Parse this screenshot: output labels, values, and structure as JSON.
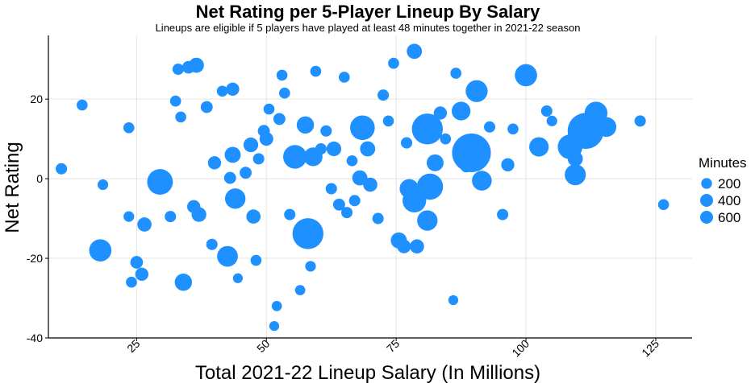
{
  "chart_data": {
    "type": "scatter",
    "title": "Net Rating per 5-Player Lineup By Salary",
    "subtitle": "Lineups are eligible if 5 players have played at least 48 minutes together in 2021-22 season",
    "xlabel": "Total 2021-22 Lineup Salary (In Millions)",
    "ylabel": "Net Rating",
    "xlim": [
      8,
      132
    ],
    "ylim": [
      -40,
      36
    ],
    "x_ticks": [
      25,
      50,
      75,
      100,
      125
    ],
    "x_tick_labels": [
      "25",
      "50",
      "75",
      "100",
      "125"
    ],
    "y_ticks": [
      -40,
      -20,
      0,
      20
    ],
    "y_tick_labels": [
      "-40",
      "-20",
      "0",
      "20"
    ],
    "grid": true,
    "point_color": "#1e90ff",
    "legend": {
      "title": "Minutes",
      "position": "right",
      "entries": [
        {
          "label": "200",
          "value": 200
        },
        {
          "label": "400",
          "value": 400
        },
        {
          "label": "600",
          "value": 600
        }
      ]
    },
    "points": [
      {
        "x": 10.5,
        "y": 2.5,
        "minutes": 60
      },
      {
        "x": 14.5,
        "y": 18.5,
        "minutes": 55
      },
      {
        "x": 18.0,
        "y": -18.0,
        "minutes": 330
      },
      {
        "x": 18.5,
        "y": -1.5,
        "minutes": 50
      },
      {
        "x": 23.5,
        "y": 12.8,
        "minutes": 55
      },
      {
        "x": 23.5,
        "y": -9.5,
        "minutes": 50
      },
      {
        "x": 24.0,
        "y": -26.0,
        "minutes": 55
      },
      {
        "x": 25.0,
        "y": -21.0,
        "minutes": 80
      },
      {
        "x": 26.0,
        "y": -24.0,
        "minutes": 90
      },
      {
        "x": 26.5,
        "y": -11.5,
        "minutes": 110
      },
      {
        "x": 29.5,
        "y": -0.8,
        "minutes": 460
      },
      {
        "x": 31.5,
        "y": -9.5,
        "minutes": 60
      },
      {
        "x": 32.5,
        "y": 19.5,
        "minutes": 55
      },
      {
        "x": 33.0,
        "y": 27.5,
        "minutes": 60
      },
      {
        "x": 33.5,
        "y": 15.5,
        "minutes": 55
      },
      {
        "x": 34.0,
        "y": -26.0,
        "minutes": 180
      },
      {
        "x": 35.0,
        "y": 28.0,
        "minutes": 80
      },
      {
        "x": 36.5,
        "y": 28.5,
        "minutes": 130
      },
      {
        "x": 36.0,
        "y": -7.0,
        "minutes": 90
      },
      {
        "x": 37.0,
        "y": -9.0,
        "minutes": 120
      },
      {
        "x": 38.5,
        "y": 18.0,
        "minutes": 70
      },
      {
        "x": 39.5,
        "y": -16.5,
        "minutes": 60
      },
      {
        "x": 40.0,
        "y": 4.0,
        "minutes": 90
      },
      {
        "x": 41.5,
        "y": 22.0,
        "minutes": 55
      },
      {
        "x": 42.5,
        "y": -19.5,
        "minutes": 280
      },
      {
        "x": 43.5,
        "y": 6.0,
        "minutes": 150
      },
      {
        "x": 43.0,
        "y": 0.2,
        "minutes": 70
      },
      {
        "x": 43.5,
        "y": 22.5,
        "minutes": 90
      },
      {
        "x": 44.0,
        "y": -5.0,
        "minutes": 270
      },
      {
        "x": 44.5,
        "y": -25.0,
        "minutes": 40
      },
      {
        "x": 46.0,
        "y": 1.5,
        "minutes": 70
      },
      {
        "x": 47.0,
        "y": 8.5,
        "minutes": 120
      },
      {
        "x": 47.5,
        "y": -9.5,
        "minutes": 110
      },
      {
        "x": 48.0,
        "y": -20.5,
        "minutes": 55
      },
      {
        "x": 48.5,
        "y": 5.0,
        "minutes": 60
      },
      {
        "x": 49.5,
        "y": 12.0,
        "minutes": 70
      },
      {
        "x": 50.0,
        "y": 10.0,
        "minutes": 100
      },
      {
        "x": 50.5,
        "y": 17.5,
        "minutes": 55
      },
      {
        "x": 51.5,
        "y": -37.0,
        "minutes": 40
      },
      {
        "x": 52.0,
        "y": -32.0,
        "minutes": 45
      },
      {
        "x": 52.5,
        "y": 15.0,
        "minutes": 70
      },
      {
        "x": 53.0,
        "y": 26.0,
        "minutes": 55
      },
      {
        "x": 53.5,
        "y": 21.5,
        "minutes": 55
      },
      {
        "x": 54.5,
        "y": -9.0,
        "minutes": 60
      },
      {
        "x": 55.5,
        "y": 5.5,
        "minutes": 380
      },
      {
        "x": 56.5,
        "y": -28.0,
        "minutes": 45
      },
      {
        "x": 57.5,
        "y": 13.5,
        "minutes": 180
      },
      {
        "x": 58.0,
        "y": -13.8,
        "minutes": 700
      },
      {
        "x": 58.5,
        "y": -22.0,
        "minutes": 50
      },
      {
        "x": 59.0,
        "y": 5.5,
        "minutes": 220
      },
      {
        "x": 59.5,
        "y": 27.0,
        "minutes": 55
      },
      {
        "x": 60.5,
        "y": 7.5,
        "minutes": 60
      },
      {
        "x": 61.5,
        "y": 12.0,
        "minutes": 60
      },
      {
        "x": 62.5,
        "y": -2.5,
        "minutes": 60
      },
      {
        "x": 63.0,
        "y": 7.5,
        "minutes": 120
      },
      {
        "x": 64.0,
        "y": -6.5,
        "minutes": 70
      },
      {
        "x": 65.0,
        "y": 25.5,
        "minutes": 55
      },
      {
        "x": 65.5,
        "y": -8.5,
        "minutes": 60
      },
      {
        "x": 66.5,
        "y": 4.5,
        "minutes": 55
      },
      {
        "x": 67.0,
        "y": -5.5,
        "minutes": 60
      },
      {
        "x": 68.5,
        "y": 12.8,
        "minutes": 420
      },
      {
        "x": 68.0,
        "y": 0.2,
        "minutes": 130
      },
      {
        "x": 69.5,
        "y": 7.5,
        "minutes": 130
      },
      {
        "x": 70.0,
        "y": -1.5,
        "minutes": 110
      },
      {
        "x": 71.5,
        "y": -10.0,
        "minutes": 60
      },
      {
        "x": 72.5,
        "y": 21.0,
        "minutes": 60
      },
      {
        "x": 73.5,
        "y": 14.5,
        "minutes": 55
      },
      {
        "x": 74.5,
        "y": 29.0,
        "minutes": 55
      },
      {
        "x": 75.5,
        "y": -15.5,
        "minutes": 150
      },
      {
        "x": 76.5,
        "y": -17.0,
        "minutes": 100
      },
      {
        "x": 77.0,
        "y": 9.0,
        "minutes": 60
      },
      {
        "x": 77.5,
        "y": -2.5,
        "minutes": 230
      },
      {
        "x": 78.5,
        "y": 32.0,
        "minutes": 130
      },
      {
        "x": 78.5,
        "y": -5.5,
        "minutes": 380
      },
      {
        "x": 79.0,
        "y": -17.0,
        "minutes": 110
      },
      {
        "x": 81.0,
        "y": 12.5,
        "minutes": 700
      },
      {
        "x": 81.5,
        "y": -2.0,
        "minutes": 480
      },
      {
        "x": 81.0,
        "y": -10.5,
        "minutes": 270
      },
      {
        "x": 82.5,
        "y": 4.0,
        "minutes": 170
      },
      {
        "x": 83.5,
        "y": 16.5,
        "minutes": 90
      },
      {
        "x": 84.5,
        "y": 10.0,
        "minutes": 55
      },
      {
        "x": 86.0,
        "y": -30.5,
        "minutes": 40
      },
      {
        "x": 86.5,
        "y": 26.5,
        "minutes": 55
      },
      {
        "x": 87.5,
        "y": 17.0,
        "minutes": 220
      },
      {
        "x": 88.5,
        "y": 3.0,
        "minutes": 60
      },
      {
        "x": 89.5,
        "y": 6.5,
        "minutes": 1150
      },
      {
        "x": 90.5,
        "y": 22.0,
        "minutes": 320
      },
      {
        "x": 91.5,
        "y": -0.5,
        "minutes": 250
      },
      {
        "x": 93.0,
        "y": 13.0,
        "minutes": 60
      },
      {
        "x": 95.5,
        "y": -9.0,
        "minutes": 60
      },
      {
        "x": 96.5,
        "y": 3.5,
        "minutes": 90
      },
      {
        "x": 97.5,
        "y": 12.5,
        "minutes": 55
      },
      {
        "x": 100.0,
        "y": 26.0,
        "minutes": 330
      },
      {
        "x": 102.5,
        "y": 8.0,
        "minutes": 240
      },
      {
        "x": 104.0,
        "y": 17.0,
        "minutes": 60
      },
      {
        "x": 105.0,
        "y": 14.5,
        "minutes": 50
      },
      {
        "x": 108.5,
        "y": 8.0,
        "minutes": 420
      },
      {
        "x": 109.5,
        "y": 1.0,
        "minutes": 290
      },
      {
        "x": 109.5,
        "y": 5.0,
        "minutes": 130
      },
      {
        "x": 111.5,
        "y": 12.0,
        "minutes": 980
      },
      {
        "x": 113.5,
        "y": 16.5,
        "minutes": 350
      },
      {
        "x": 115.5,
        "y": 13.0,
        "minutes": 250
      },
      {
        "x": 122.0,
        "y": 14.5,
        "minutes": 60
      },
      {
        "x": 126.5,
        "y": -6.5,
        "minutes": 55
      }
    ]
  }
}
